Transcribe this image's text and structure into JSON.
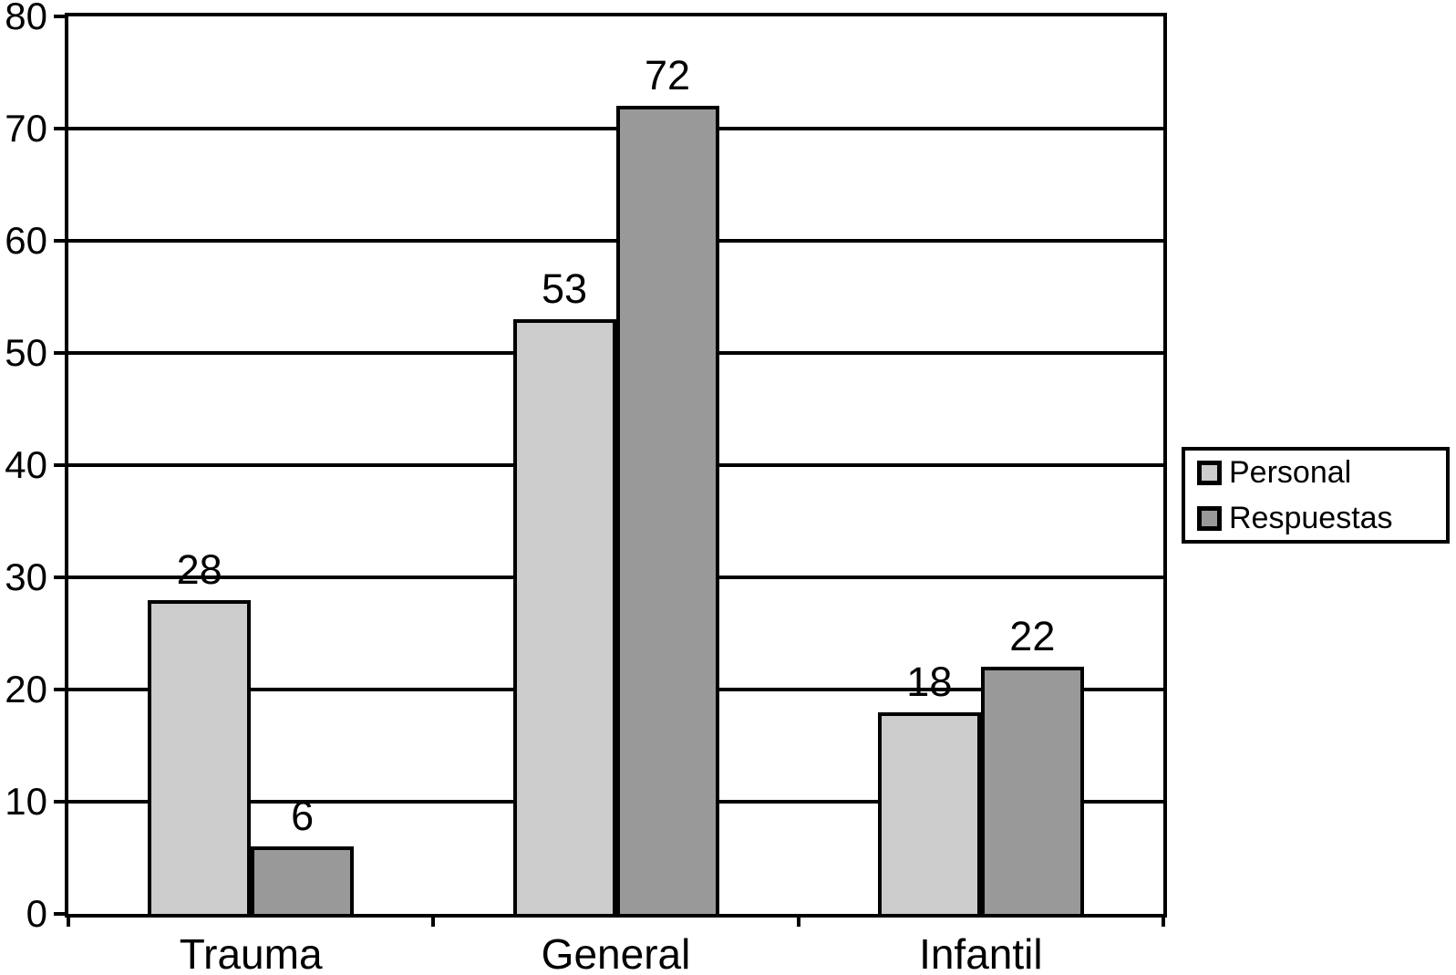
{
  "chart_data": {
    "type": "bar",
    "categories": [
      "Trauma",
      "General",
      "Infantil"
    ],
    "series": [
      {
        "name": "Personal",
        "color": "#cccccc",
        "values": [
          28,
          53,
          18
        ]
      },
      {
        "name": "Respuestas",
        "color": "#999999",
        "values": [
          6,
          72,
          22
        ]
      }
    ],
    "title": "",
    "xlabel": "",
    "ylabel": "",
    "ylim": [
      0,
      80
    ],
    "yticks": [
      0,
      10,
      20,
      30,
      40,
      50,
      60,
      70,
      80
    ],
    "grid": true,
    "bar_value_labels": true,
    "legend_position": "right-outside",
    "axis_color": "#000000",
    "background_color": "#ffffff"
  },
  "legend": {
    "items": [
      {
        "label": "Personal",
        "color": "#cccccc"
      },
      {
        "label": "Respuestas",
        "color": "#999999"
      }
    ]
  }
}
